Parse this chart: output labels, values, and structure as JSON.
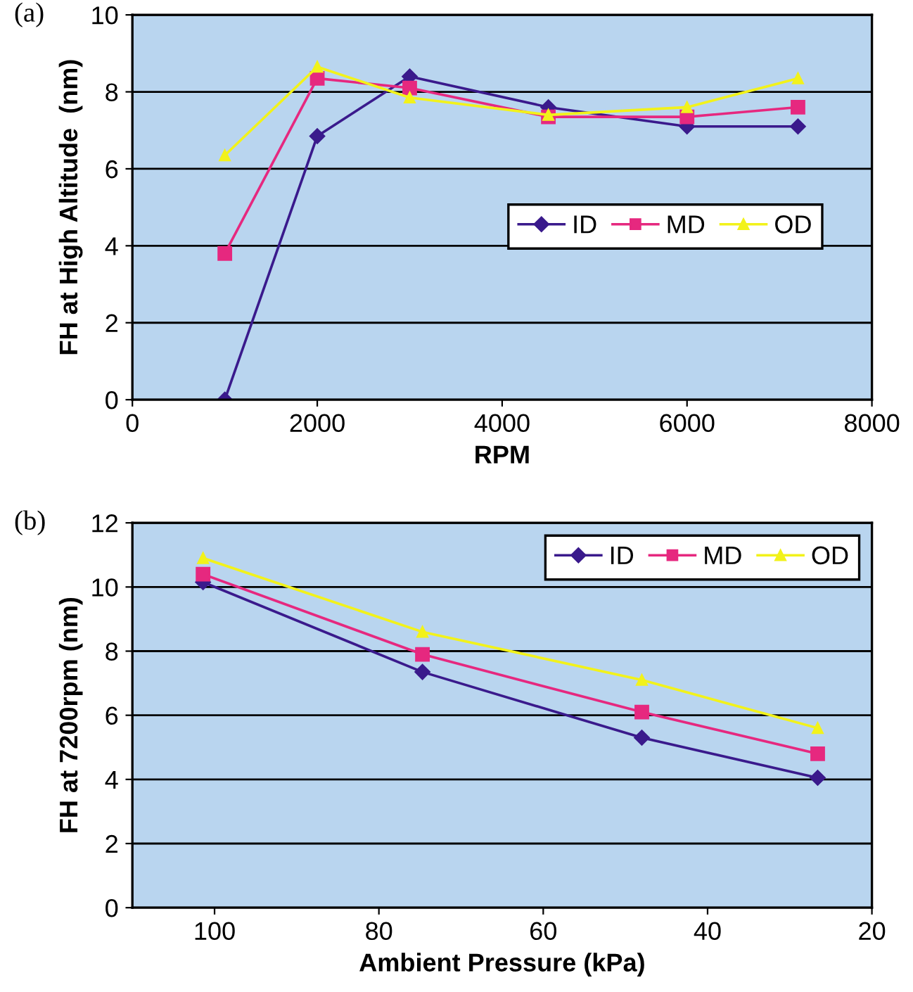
{
  "chart_data": [
    {
      "type": "line",
      "xlabel": "RPM",
      "ylabel": "FH at High Altitude  (nm)",
      "annotations": [
        "(a)"
      ],
      "x": [
        1000,
        2000,
        3000,
        4500,
        6000,
        7200
      ],
      "series": [
        {
          "name": "ID",
          "color": "#3a1a8c",
          "marker": "diamond",
          "values": [
            0,
            6.85,
            8.4,
            7.6,
            7.1,
            7.1
          ]
        },
        {
          "name": "MD",
          "color": "#e6287f",
          "marker": "square",
          "values": [
            3.8,
            8.35,
            8.1,
            7.35,
            7.35,
            7.6
          ]
        },
        {
          "name": "OD",
          "color": "#f2f21a",
          "marker": "triangle",
          "values": [
            6.35,
            8.65,
            7.85,
            7.4,
            7.6,
            8.35
          ]
        }
      ],
      "xlim": [
        0,
        8000
      ],
      "xticks": [
        0,
        2000,
        4000,
        6000,
        8000
      ],
      "ylim": [
        0,
        10
      ],
      "yticks": [
        0,
        2,
        4,
        6,
        8,
        10
      ],
      "grid": "y",
      "legend": "center right"
    },
    {
      "type": "line",
      "xlabel": "Ambient Pressure (kPa)",
      "ylabel": "FH at 7200rpm (nm)",
      "annotations": [
        "(b)"
      ],
      "x": [
        101.4,
        74.7,
        48,
        26.6
      ],
      "series": [
        {
          "name": "ID",
          "color": "#3a1a8c",
          "marker": "diamond",
          "values": [
            10.15,
            7.35,
            5.3,
            4.05
          ]
        },
        {
          "name": "MD",
          "color": "#e6287f",
          "marker": "square",
          "values": [
            10.4,
            7.9,
            6.1,
            4.8
          ]
        },
        {
          "name": "OD",
          "color": "#f2f21a",
          "marker": "triangle",
          "values": [
            10.9,
            8.6,
            7.1,
            5.6
          ]
        }
      ],
      "xlim": [
        110,
        20
      ],
      "xticks": [
        100,
        80,
        60,
        40,
        20
      ],
      "ylim": [
        0,
        12
      ],
      "yticks": [
        0,
        2,
        4,
        6,
        8,
        10,
        12
      ],
      "grid": "y",
      "legend": "top right"
    }
  ]
}
